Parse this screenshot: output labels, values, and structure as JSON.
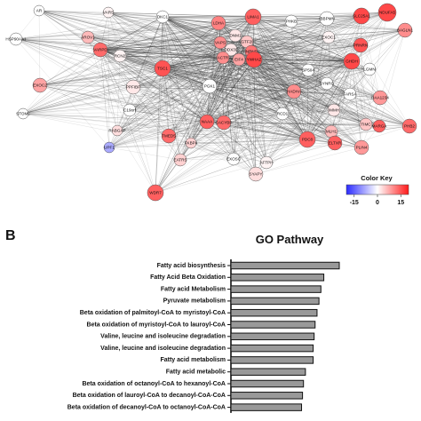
{
  "network": {
    "nodes": [
      {
        "id": "AR",
        "value": 0
      },
      {
        "id": "VARS",
        "value": 1
      },
      {
        "id": "DKC1",
        "value": 0
      },
      {
        "id": "LDHA",
        "value": 11
      },
      {
        "id": "LIMA1",
        "value": 14
      },
      {
        "id": "PHKB",
        "value": 0
      },
      {
        "id": "IBBPMN",
        "value": 0
      },
      {
        "id": "SLC25A1",
        "value": 16
      },
      {
        "id": "NDUFA5",
        "value": 16
      },
      {
        "id": "BAGLN1",
        "value": 10
      },
      {
        "id": "HSP90AA1",
        "value": 0
      },
      {
        "id": "AROV1",
        "value": 6
      },
      {
        "id": "VARPD",
        "value": 13
      },
      {
        "id": "DNM1",
        "value": 2
      },
      {
        "id": "VAPS",
        "value": 10
      },
      {
        "id": "GTF2I",
        "value": 5
      },
      {
        "id": "EXOC1",
        "value": 1
      },
      {
        "id": "PRNRN",
        "value": 15
      },
      {
        "id": "RCN2",
        "value": 1
      },
      {
        "id": "DDX39",
        "value": 2
      },
      {
        "id": "HNRNPA",
        "value": 12
      },
      {
        "id": "GHDH",
        "value": 16
      },
      {
        "id": "TSC1",
        "value": 15
      },
      {
        "id": "ACTR",
        "value": 10
      },
      {
        "id": "EIF4",
        "value": 8
      },
      {
        "id": "YWHAZ",
        "value": 16
      },
      {
        "id": "EXOC2",
        "value": 8
      },
      {
        "id": "PPFIBP",
        "value": 2
      },
      {
        "id": "PGK1",
        "value": 0
      },
      {
        "id": "SP504",
        "value": 0
      },
      {
        "id": "LGMN",
        "value": 0
      },
      {
        "id": "SYNRG",
        "value": 0
      },
      {
        "id": "FARSA",
        "value": 0
      },
      {
        "id": "DAA1234",
        "value": 9
      },
      {
        "id": "HADHA",
        "value": 10
      },
      {
        "id": "STOML",
        "value": 0
      },
      {
        "id": "C19orf",
        "value": 0
      },
      {
        "id": "NAAA",
        "value": 14
      },
      {
        "id": "CACYBP",
        "value": 13
      },
      {
        "id": "RCD1",
        "value": 0
      },
      {
        "id": "IMMH",
        "value": 2
      },
      {
        "id": "TIMC",
        "value": 5
      },
      {
        "id": "MARGA",
        "value": 14
      },
      {
        "id": "PHB2",
        "value": 13
      },
      {
        "id": "RABGAP",
        "value": 3
      },
      {
        "id": "TMED5",
        "value": 13
      },
      {
        "id": "PDC8",
        "value": 14
      },
      {
        "id": "MLH1",
        "value": 6
      },
      {
        "id": "UPF1",
        "value": -8
      },
      {
        "id": "FKBP4",
        "value": 4
      },
      {
        "id": "EXOSC",
        "value": 0
      },
      {
        "id": "ELTXR",
        "value": 14
      },
      {
        "id": "PLIN4",
        "value": 9
      },
      {
        "id": "EATRS",
        "value": 4
      },
      {
        "id": "AFTPH",
        "value": 1
      },
      {
        "id": "SYAPY",
        "value": 3
      },
      {
        "id": "WDR7",
        "value": 14
      }
    ],
    "color_key": {
      "title": "Color Key",
      "ticks": [
        "-15",
        "0",
        "15"
      ],
      "min": -20,
      "max": 20,
      "low_color": "#2b2bff",
      "mid_color": "#ffffff",
      "high_color": "#ff1a1a"
    }
  },
  "panel_b": {
    "letter": "B"
  },
  "chart_data": {
    "type": "bar",
    "orientation": "horizontal",
    "title": "GO Pathway",
    "categories": [
      "Fatty acid biosynthesis",
      "Fatty Acid Beta Oxidation",
      "Fatty acid Metabolism",
      "Pyruvate metabolism",
      "Beta oxidation of palmitoyl-CoA to myristoyl-CoA",
      "Beta oxidation of myristoyl-CoA to lauroyl-CoA",
      "Valine, leucine and isoleucine degradation",
      "Valine, leucine and isoleucine degradation",
      "Fatty acid metabolism",
      "Fatty acid metabolic",
      "Beta oxidation of octanoyl-CoA to hexanoyl-CoA",
      "Beta oxidation of lauroyl-CoA to decanoyl-CoA-CoA",
      "Beta oxidation of decanoyl-CoA to octanoyl-CoA-CoA"
    ],
    "values": [
      11.2,
      9.6,
      9.3,
      9.1,
      8.9,
      8.7,
      8.6,
      8.5,
      8.5,
      7.7,
      7.5,
      7.4,
      7.3
    ],
    "bar_color": "#999999",
    "xlim": [
      0,
      12
    ]
  }
}
